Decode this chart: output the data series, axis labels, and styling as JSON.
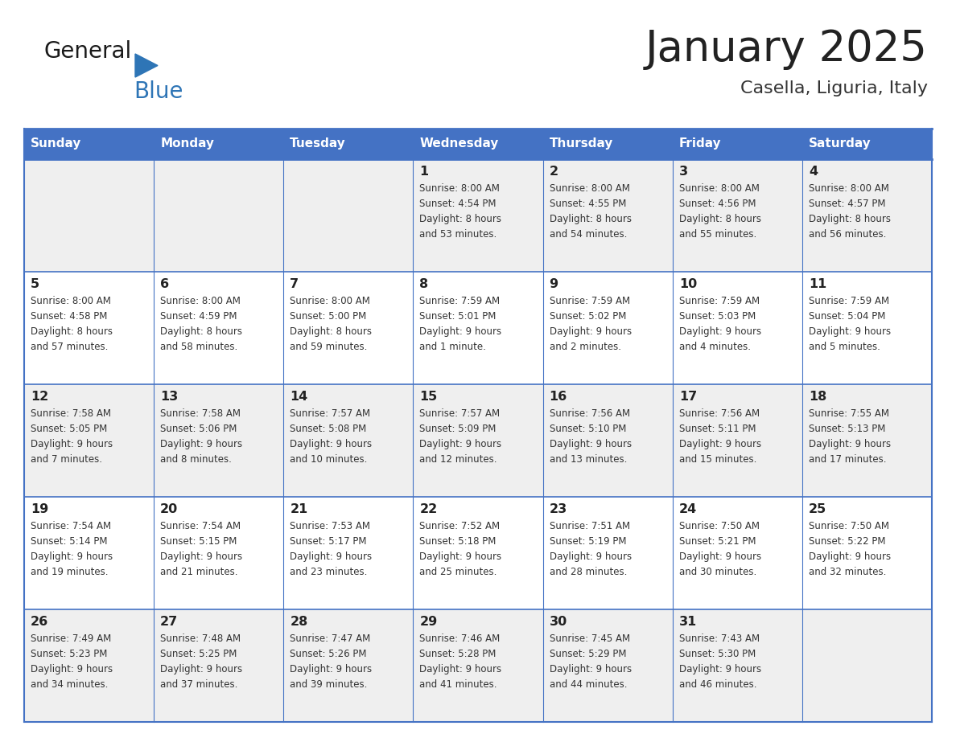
{
  "title": "January 2025",
  "subtitle": "Casella, Liguria, Italy",
  "days_of_week": [
    "Sunday",
    "Monday",
    "Tuesday",
    "Wednesday",
    "Thursday",
    "Friday",
    "Saturday"
  ],
  "header_bg": "#4472C4",
  "header_text": "#FFFFFF",
  "row_bg_light": "#EFEFEF",
  "row_bg_white": "#FFFFFF",
  "cell_border": "#4472C4",
  "day_number_color": "#222222",
  "text_color": "#333333",
  "title_color": "#222222",
  "subtitle_color": "#333333",
  "logo_general_color": "#1a1a1a",
  "logo_blue_color": "#2E75B6",
  "calendar": [
    [
      null,
      null,
      null,
      {
        "day": 1,
        "sunrise": "8:00 AM",
        "sunset": "4:54 PM",
        "daylight": "8 hours and 53 minutes"
      },
      {
        "day": 2,
        "sunrise": "8:00 AM",
        "sunset": "4:55 PM",
        "daylight": "8 hours and 54 minutes"
      },
      {
        "day": 3,
        "sunrise": "8:00 AM",
        "sunset": "4:56 PM",
        "daylight": "8 hours and 55 minutes"
      },
      {
        "day": 4,
        "sunrise": "8:00 AM",
        "sunset": "4:57 PM",
        "daylight": "8 hours and 56 minutes"
      }
    ],
    [
      {
        "day": 5,
        "sunrise": "8:00 AM",
        "sunset": "4:58 PM",
        "daylight": "8 hours and 57 minutes"
      },
      {
        "day": 6,
        "sunrise": "8:00 AM",
        "sunset": "4:59 PM",
        "daylight": "8 hours and 58 minutes"
      },
      {
        "day": 7,
        "sunrise": "8:00 AM",
        "sunset": "5:00 PM",
        "daylight": "8 hours and 59 minutes"
      },
      {
        "day": 8,
        "sunrise": "7:59 AM",
        "sunset": "5:01 PM",
        "daylight": "9 hours and 1 minute"
      },
      {
        "day": 9,
        "sunrise": "7:59 AM",
        "sunset": "5:02 PM",
        "daylight": "9 hours and 2 minutes"
      },
      {
        "day": 10,
        "sunrise": "7:59 AM",
        "sunset": "5:03 PM",
        "daylight": "9 hours and 4 minutes"
      },
      {
        "day": 11,
        "sunrise": "7:59 AM",
        "sunset": "5:04 PM",
        "daylight": "9 hours and 5 minutes"
      }
    ],
    [
      {
        "day": 12,
        "sunrise": "7:58 AM",
        "sunset": "5:05 PM",
        "daylight": "9 hours and 7 minutes"
      },
      {
        "day": 13,
        "sunrise": "7:58 AM",
        "sunset": "5:06 PM",
        "daylight": "9 hours and 8 minutes"
      },
      {
        "day": 14,
        "sunrise": "7:57 AM",
        "sunset": "5:08 PM",
        "daylight": "9 hours and 10 minutes"
      },
      {
        "day": 15,
        "sunrise": "7:57 AM",
        "sunset": "5:09 PM",
        "daylight": "9 hours and 12 minutes"
      },
      {
        "day": 16,
        "sunrise": "7:56 AM",
        "sunset": "5:10 PM",
        "daylight": "9 hours and 13 minutes"
      },
      {
        "day": 17,
        "sunrise": "7:56 AM",
        "sunset": "5:11 PM",
        "daylight": "9 hours and 15 minutes"
      },
      {
        "day": 18,
        "sunrise": "7:55 AM",
        "sunset": "5:13 PM",
        "daylight": "9 hours and 17 minutes"
      }
    ],
    [
      {
        "day": 19,
        "sunrise": "7:54 AM",
        "sunset": "5:14 PM",
        "daylight": "9 hours and 19 minutes"
      },
      {
        "day": 20,
        "sunrise": "7:54 AM",
        "sunset": "5:15 PM",
        "daylight": "9 hours and 21 minutes"
      },
      {
        "day": 21,
        "sunrise": "7:53 AM",
        "sunset": "5:17 PM",
        "daylight": "9 hours and 23 minutes"
      },
      {
        "day": 22,
        "sunrise": "7:52 AM",
        "sunset": "5:18 PM",
        "daylight": "9 hours and 25 minutes"
      },
      {
        "day": 23,
        "sunrise": "7:51 AM",
        "sunset": "5:19 PM",
        "daylight": "9 hours and 28 minutes"
      },
      {
        "day": 24,
        "sunrise": "7:50 AM",
        "sunset": "5:21 PM",
        "daylight": "9 hours and 30 minutes"
      },
      {
        "day": 25,
        "sunrise": "7:50 AM",
        "sunset": "5:22 PM",
        "daylight": "9 hours and 32 minutes"
      }
    ],
    [
      {
        "day": 26,
        "sunrise": "7:49 AM",
        "sunset": "5:23 PM",
        "daylight": "9 hours and 34 minutes"
      },
      {
        "day": 27,
        "sunrise": "7:48 AM",
        "sunset": "5:25 PM",
        "daylight": "9 hours and 37 minutes"
      },
      {
        "day": 28,
        "sunrise": "7:47 AM",
        "sunset": "5:26 PM",
        "daylight": "9 hours and 39 minutes"
      },
      {
        "day": 29,
        "sunrise": "7:46 AM",
        "sunset": "5:28 PM",
        "daylight": "9 hours and 41 minutes"
      },
      {
        "day": 30,
        "sunrise": "7:45 AM",
        "sunset": "5:29 PM",
        "daylight": "9 hours and 44 minutes"
      },
      {
        "day": 31,
        "sunrise": "7:43 AM",
        "sunset": "5:30 PM",
        "daylight": "9 hours and 46 minutes"
      },
      null
    ]
  ]
}
